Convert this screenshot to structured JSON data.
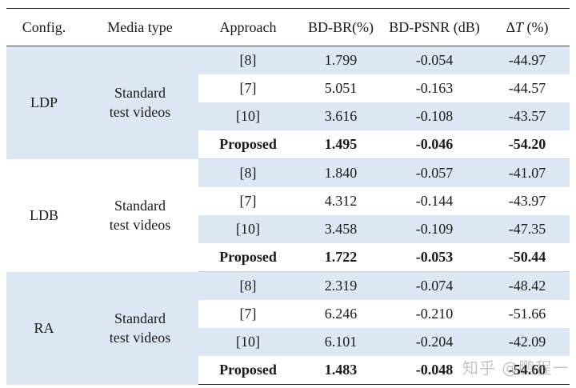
{
  "headers": [
    "Config.",
    "Media type",
    "Approach",
    "BD-BR(%)",
    "BD-PSNR (dB)",
    "ΔT (%)"
  ],
  "groups": [
    {
      "config": "LDP",
      "media_line1": "Standard",
      "media_line2": "test videos",
      "rows": [
        {
          "approach": "[8]",
          "bdbr": "1.799",
          "bdpsnr": "-0.054",
          "dt": "-44.97"
        },
        {
          "approach": "[7]",
          "bdbr": "5.051",
          "bdpsnr": "-0.163",
          "dt": "-44.57"
        },
        {
          "approach": "[10]",
          "bdbr": "3.616",
          "bdpsnr": "-0.108",
          "dt": "-43.57"
        },
        {
          "approach": "Proposed",
          "bdbr": "1.495",
          "bdpsnr": "-0.046",
          "dt": "-54.20"
        }
      ]
    },
    {
      "config": "LDB",
      "media_line1": "Standard",
      "media_line2": "test videos",
      "rows": [
        {
          "approach": "[8]",
          "bdbr": "1.840",
          "bdpsnr": "-0.057",
          "dt": "-41.07"
        },
        {
          "approach": "[7]",
          "bdbr": "4.312",
          "bdpsnr": "-0.144",
          "dt": "-43.97"
        },
        {
          "approach": "[10]",
          "bdbr": "3.458",
          "bdpsnr": "-0.109",
          "dt": "-47.35"
        },
        {
          "approach": "Proposed",
          "bdbr": "1.722",
          "bdpsnr": "-0.053",
          "dt": "-50.44"
        }
      ]
    },
    {
      "config": "RA",
      "media_line1": "Standard",
      "media_line2": "test videos",
      "rows": [
        {
          "approach": "[8]",
          "bdbr": "2.319",
          "bdpsnr": "-0.074",
          "dt": "-48.42"
        },
        {
          "approach": "[7]",
          "bdbr": "6.246",
          "bdpsnr": "-0.210",
          "dt": "-51.66"
        },
        {
          "approach": "[10]",
          "bdbr": "6.101",
          "bdpsnr": "-0.204",
          "dt": "-42.09"
        },
        {
          "approach": "Proposed",
          "bdbr": "1.483",
          "bdpsnr": "-0.048",
          "dt": "-54.60"
        }
      ]
    }
  ],
  "watermark": "知乎 @鹏程一",
  "colors": {
    "group_bg": "#dde7f3",
    "rule": "#222222"
  }
}
